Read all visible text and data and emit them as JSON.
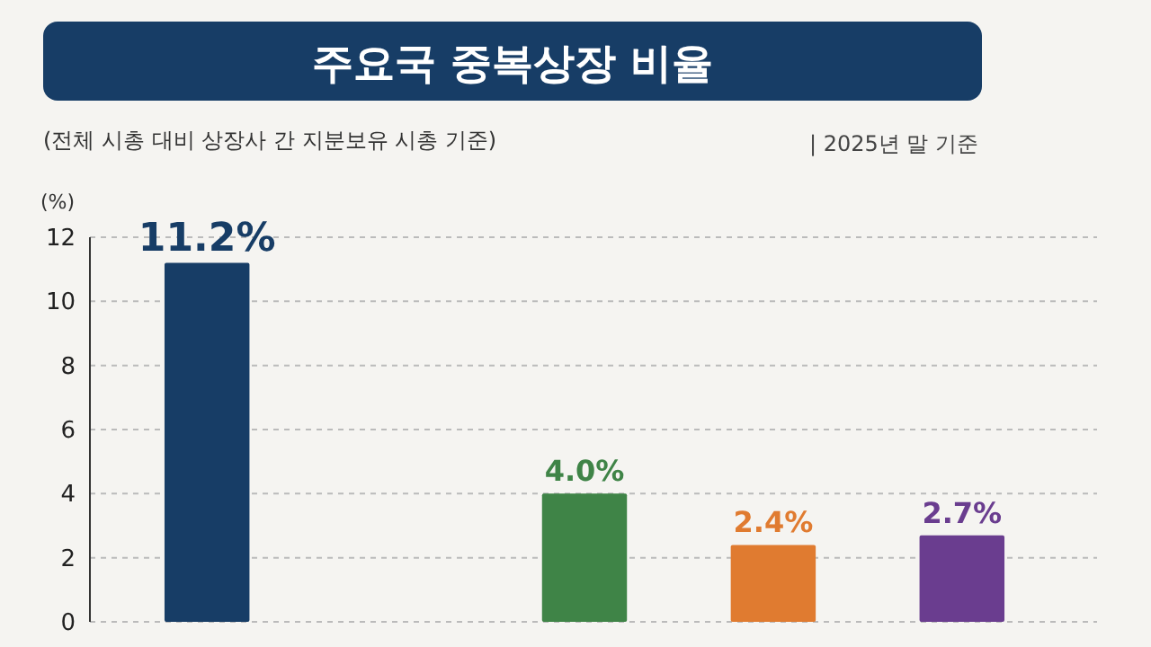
{
  "chart_data": {
    "type": "bar",
    "title": "주요국 중복상장 비율",
    "subtitle": "(전체 시총 대비 상장사 간 지분보유 시총 기준)",
    "annotations": [
      "| 2025년 말 기준"
    ],
    "ylabel": "(%)",
    "categories": [
      null,
      null,
      null,
      null,
      null
    ],
    "values": [
      11.2,
      null,
      4.0,
      2.4,
      2.7
    ],
    "colors": [
      "#173d66",
      null,
      "#3f8447",
      "#e07b30",
      "#6a3d8f"
    ],
    "value_labels": [
      "11.2%",
      null,
      "4.0%",
      "2.4%",
      "2.7%"
    ],
    "ylim": [
      0,
      12
    ],
    "yticks": [
      0,
      2,
      4,
      6,
      8,
      10,
      12
    ],
    "grid": "y"
  }
}
